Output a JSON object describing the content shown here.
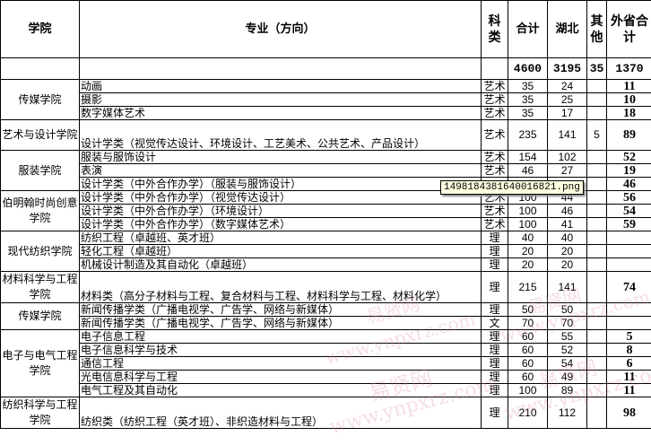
{
  "header": {
    "college": "学院",
    "major": "专业（方向）",
    "category": "科类",
    "total": "合计",
    "hubei": "湖北",
    "other": "其他",
    "out_province": "外省合计"
  },
  "totals": {
    "total": "4600",
    "hubei": "3195",
    "other": "35",
    "out_province": "1370"
  },
  "groups": [
    {
      "college": "传媒学院",
      "rows": [
        {
          "major": "动画",
          "cat": "艺术",
          "total": "35",
          "hubei": "24",
          "other": "",
          "out": "11"
        },
        {
          "major": "摄影",
          "cat": "艺术",
          "total": "35",
          "hubei": "25",
          "other": "",
          "out": "10"
        },
        {
          "major": "数字媒体艺术",
          "cat": "艺术",
          "total": "35",
          "hubei": "17",
          "other": "",
          "out": "18"
        }
      ]
    },
    {
      "college": "艺术与设计学院",
      "tall": true,
      "rows": [
        {
          "major": "设计学类（视觉传达设计、环境设计、工艺美术、公共艺术、产品设计）",
          "cat": "艺术",
          "total": "235",
          "hubei": "141",
          "other": "5",
          "out": "89"
        }
      ]
    },
    {
      "college": "服装学院",
      "rows": [
        {
          "major": "服装与服饰设计",
          "cat": "艺术",
          "total": "154",
          "hubei": "102",
          "other": "",
          "out": "52"
        },
        {
          "major": "表演",
          "cat": "艺术",
          "total": "46",
          "hubei": "27",
          "other": "",
          "out": "19"
        },
        {
          "major": "设计学类（中外合作办学）（服装与服饰设计）",
          "cat": "",
          "total": "",
          "hubei": "",
          "other": "",
          "out": "46"
        }
      ]
    },
    {
      "college": "伯明翰时尚创意学院",
      "rows": [
        {
          "major": "设计学类（中外合作办学）（视觉传达设计）",
          "cat": "艺术",
          "total": "100",
          "hubei": "44",
          "other": "",
          "out": "56"
        },
        {
          "major": "设计学类（中外合作办学）（环境设计）",
          "cat": "艺术",
          "total": "100",
          "hubei": "46",
          "other": "",
          "out": "54"
        },
        {
          "major": "设计学类（中外合作办学）（数字媒体艺术）",
          "cat": "艺术",
          "total": "100",
          "hubei": "41",
          "other": "",
          "out": "59"
        }
      ]
    },
    {
      "college": "现代纺织学院",
      "rows": [
        {
          "major": "纺织工程（卓越班、英才班）",
          "cat": "理",
          "total": "40",
          "hubei": "40",
          "other": "",
          "out": ""
        },
        {
          "major": "轻化工程（卓越班）",
          "cat": "理",
          "total": "20",
          "hubei": "20",
          "other": "",
          "out": ""
        },
        {
          "major": "机械设计制造及其自动化（卓越班）",
          "cat": "理",
          "total": "20",
          "hubei": "20",
          "other": "",
          "out": ""
        }
      ]
    },
    {
      "college": "材料科学与工程学院",
      "tall": true,
      "rows": [
        {
          "major": "材料类（高分子材料与工程、复合材料与工程、材料科学与工程、材料化学）",
          "cat": "理",
          "total": "215",
          "hubei": "141",
          "other": "",
          "out": "74"
        }
      ]
    },
    {
      "college": "传媒学院",
      "rows": [
        {
          "major": "新闻传播学类（广播电视学、广告学、网络与新媒体）",
          "cat": "理",
          "total": "50",
          "hubei": "50",
          "other": "",
          "out": ""
        },
        {
          "major": "新闻传播学类（广播电视学、广告学、网络与新媒体）",
          "cat": "文",
          "total": "70",
          "hubei": "70",
          "other": "",
          "out": ""
        }
      ]
    },
    {
      "college": "电子与电气工程学院",
      "rows": [
        {
          "major": "电子信息工程",
          "cat": "理",
          "total": "60",
          "hubei": "55",
          "other": "",
          "out": "5"
        },
        {
          "major": "电子信息科学与技术",
          "cat": "理",
          "total": "60",
          "hubei": "52",
          "other": "",
          "out": "8"
        },
        {
          "major": "通信工程",
          "cat": "理",
          "total": "60",
          "hubei": "54",
          "other": "",
          "out": "6"
        },
        {
          "major": "光电信息科学与工程",
          "cat": "理",
          "total": "60",
          "hubei": "49",
          "other": "",
          "out": "11"
        },
        {
          "major": "电气工程及其自动化",
          "cat": "理",
          "total": "100",
          "hubei": "89",
          "other": "",
          "out": "11"
        }
      ]
    },
    {
      "college": "纺织科学与工程学院",
      "tall": true,
      "rows": [
        {
          "major": "纺织类（纺织工程（英才班）、非织造材料与工程）",
          "cat": "理",
          "total": "210",
          "hubei": "112",
          "other": "",
          "out": "98"
        }
      ]
    }
  ],
  "tooltip": "1498184381640016821.png",
  "watermarks": [
    "易贤网",
    "www.ynpxrz.com"
  ]
}
